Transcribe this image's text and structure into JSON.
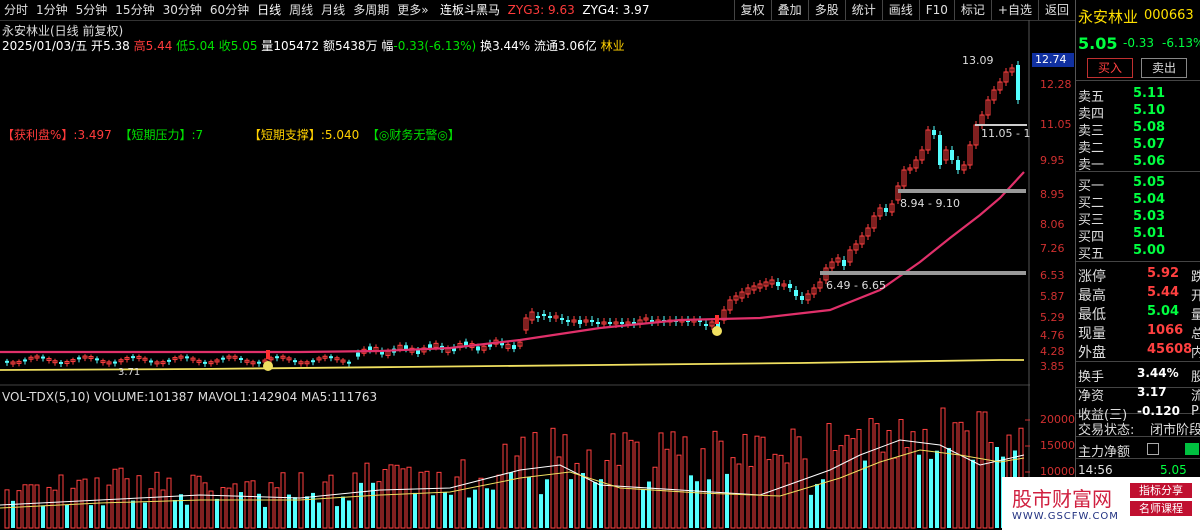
{
  "period_tabs": [
    "分时",
    "1分钟",
    "5分钟",
    "15分钟",
    "30分钟",
    "60分钟",
    "日线",
    "周线",
    "月线",
    "多周期",
    "更多»"
  ],
  "selected_period": "日线",
  "zyg": {
    "name": "连板斗黑马",
    "zyg3_label": "ZYG3:",
    "zyg3": "9.63",
    "zyg4_label": "ZYG4:",
    "zyg4": "3.97"
  },
  "toolbar": [
    "复权",
    "叠加",
    "多股",
    "统计",
    "画线",
    "F10",
    "标记",
    "+自选",
    "返回"
  ],
  "chart_title": "永安林业(日线 前复权)",
  "info": {
    "date": "2025/01/03/五",
    "open_label": "开",
    "open": "5.38",
    "high_label": "高",
    "high": "5.44",
    "low_label": "低",
    "low": "5.04",
    "close_label": "收",
    "close": "5.05",
    "vol_label": "量",
    "vol": "105472",
    "amt_label": "额",
    "amt": "5438万",
    "chg_label": "幅",
    "chg": "-0.33(-6.13%)",
    "turn_label": "换",
    "turn": "3.44%",
    "float_label": "流通",
    "float": "3.06亿",
    "industry": "林业"
  },
  "indicator": {
    "profit_label": "【获利盘%】",
    "profit": ":3.497",
    "pressure_label": "【短期压力】",
    "pressure": ":7",
    "support_label": "【短期支撑】",
    "support": ":5.040",
    "finance": "【◎财务无警◎】"
  },
  "price_axis": [
    "12.28",
    "11.05",
    "9.95",
    "8.95",
    "8.06",
    "7.26",
    "6.53",
    "5.87",
    "5.29",
    "4.76",
    "4.28",
    "3.85"
  ],
  "price_current": "12.74",
  "annotations": {
    "high": "13.09",
    "low": "3.71",
    "range1": "11.05 - 1",
    "range2": "8.94 - 9.10",
    "range3": "6.49 - 6.65"
  },
  "volume": {
    "title": "VOL-TDX(5,10)",
    "volume_label": "VOLUME:",
    "volume": "101387",
    "mavol1_label": "MAVOL1:",
    "mavol1": "142904",
    "ma5_label": "MA5:",
    "ma5": "111763",
    "axis": [
      "20000",
      "15000",
      "10000"
    ]
  },
  "stock": {
    "name": "永安林业",
    "code": "000663",
    "price": "5.05",
    "change": "-0.33",
    "pct": "-6.13%",
    "buy_btn": "买入",
    "sell_btn": "卖出"
  },
  "sell_orders": [
    {
      "label": "卖五",
      "price": "5.11"
    },
    {
      "label": "卖四",
      "price": "5.10"
    },
    {
      "label": "卖三",
      "price": "5.08"
    },
    {
      "label": "卖二",
      "price": "5.07"
    },
    {
      "label": "卖一",
      "price": "5.06"
    }
  ],
  "buy_orders": [
    {
      "label": "买一",
      "price": "5.05"
    },
    {
      "label": "买二",
      "price": "5.04"
    },
    {
      "label": "买三",
      "price": "5.03"
    },
    {
      "label": "买四",
      "price": "5.01"
    },
    {
      "label": "买五",
      "price": "5.00"
    }
  ],
  "stats": [
    {
      "label": "涨停",
      "value": "5.92",
      "extra": "跌"
    },
    {
      "label": "最高",
      "value": "5.44",
      "extra": "开"
    },
    {
      "label": "最低",
      "value": "5.04",
      "extra": "量"
    },
    {
      "label": "现量",
      "value": "1066",
      "extra": "总"
    },
    {
      "label": "外盘",
      "value": "45608",
      "extra": "内"
    }
  ],
  "stats2": [
    {
      "label": "换手",
      "value": "3.44%",
      "extra": "股"
    },
    {
      "label": "净资",
      "value": "3.17",
      "extra": "流"
    },
    {
      "label": "收益(三)",
      "value": "-0.120",
      "extra": "P"
    }
  ],
  "trade_status": {
    "label": "交易状态:",
    "value": "闭市阶段"
  },
  "main_net": {
    "label": "主力净额"
  },
  "tick": {
    "time": "14:56",
    "price": "5.05"
  },
  "watermark": {
    "title": "股市财富网",
    "tag1": "指标分享",
    "tag2": "名师课程",
    "url": "WWW.GSCFW.COM"
  }
}
